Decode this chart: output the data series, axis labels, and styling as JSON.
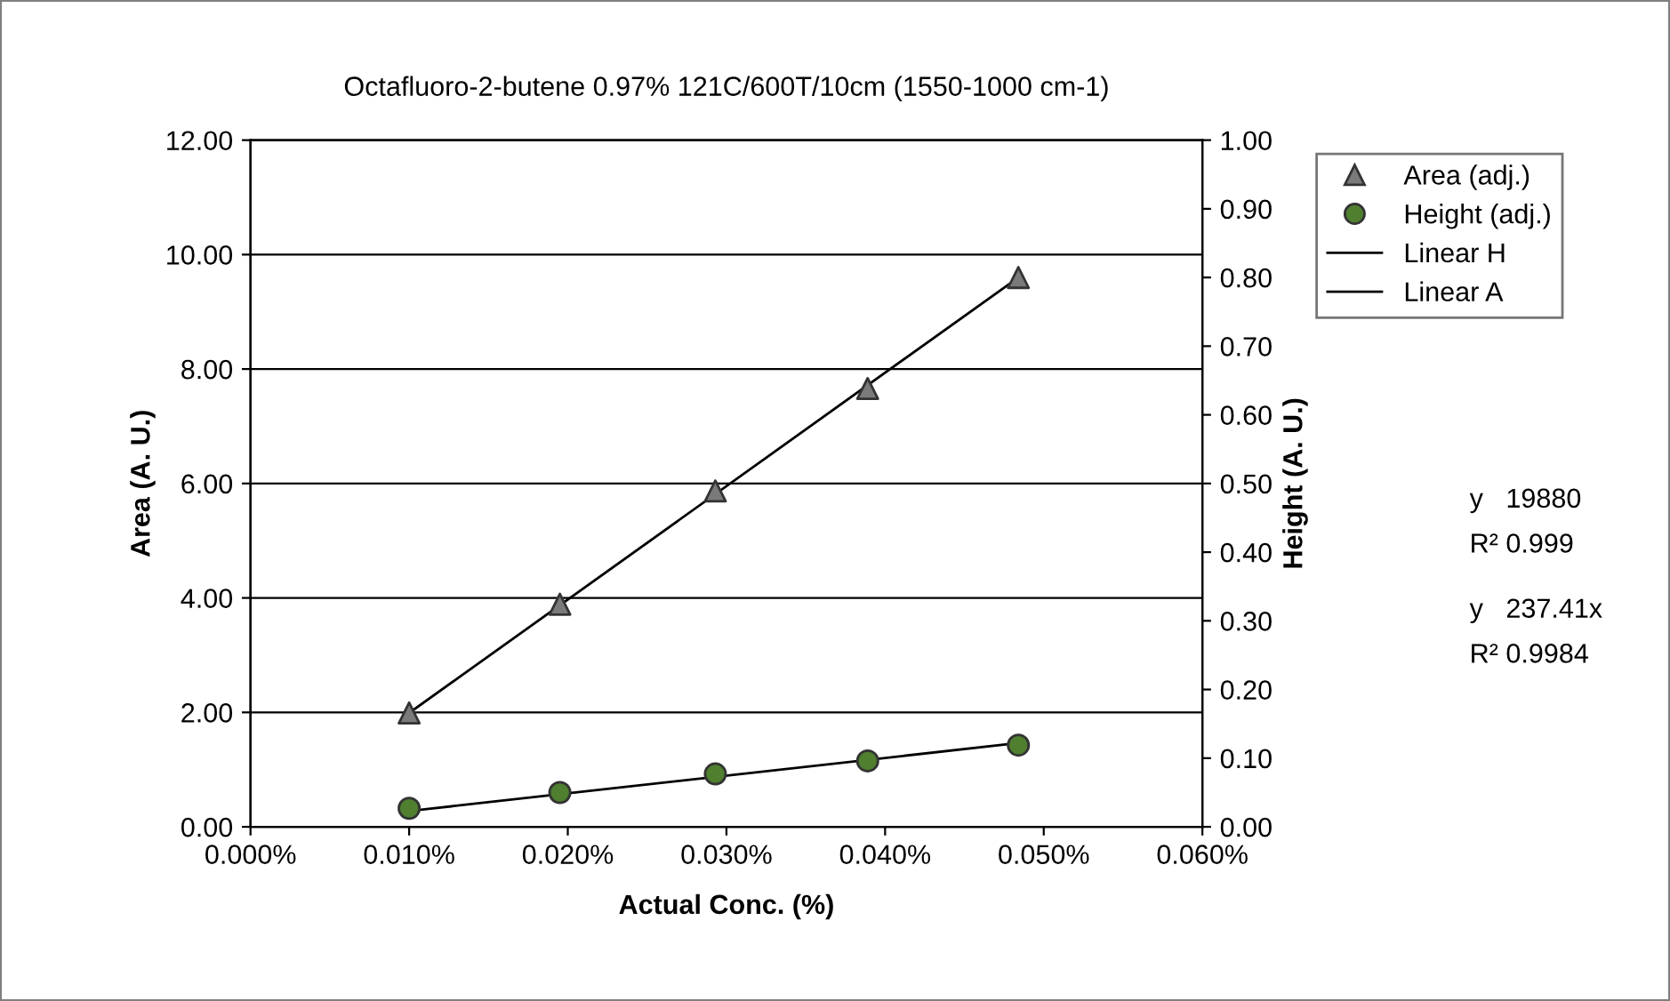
{
  "chart_data": {
    "type": "scatter",
    "title": "Octafluoro-2-butene 0.97% 121C/600T/10cm (1550-1000 cm-1)",
    "xlabel": "Actual Conc. (%)",
    "ylabel": "Area (A. U.)",
    "y2label": "Height (A. U.)",
    "series": [
      {
        "name": "Area (adj.)",
        "axis": "y",
        "marker": "triangle",
        "color": "#7a7a7a",
        "x": [
          0.01,
          0.0195,
          0.0293,
          0.0389,
          0.0484
        ],
        "values": [
          1.99,
          3.89,
          5.87,
          7.66,
          9.6
        ]
      },
      {
        "name": "Height (adj.)",
        "axis": "y2",
        "marker": "circle",
        "color": "#4f7f2f",
        "x": [
          0.01,
          0.0195,
          0.0293,
          0.0389,
          0.0484
        ],
        "values": [
          0.027,
          0.05,
          0.077,
          0.096,
          0.119
        ]
      },
      {
        "name": "Linear H",
        "type": "line",
        "axis": "y2",
        "marker": "none",
        "line_style": "solid",
        "color": "#000000",
        "x": [
          0.01,
          0.0484
        ],
        "values": [
          0.023,
          0.122
        ]
      },
      {
        "name": "Linear A",
        "type": "line",
        "axis": "y",
        "marker": "none",
        "line_style": "solid",
        "color": "#000000",
        "x": [
          0.01,
          0.0484
        ],
        "values": [
          1.99,
          9.6
        ]
      }
    ],
    "xlim": [
      0,
      0.06
    ],
    "xticks": [
      {
        "value": 0,
        "label": "0.000%"
      },
      {
        "value": 0.01,
        "label": "0.010%"
      },
      {
        "value": 0.02,
        "label": "0.020%"
      },
      {
        "value": 0.03,
        "label": "0.030%"
      },
      {
        "value": 0.04,
        "label": "0.040%"
      },
      {
        "value": 0.05,
        "label": "0.050%"
      },
      {
        "value": 0.06,
        "label": "0.060%"
      }
    ],
    "ylim": [
      0,
      12
    ],
    "yticks": [
      {
        "value": 0,
        "label": "0.00"
      },
      {
        "value": 2,
        "label": "2.00"
      },
      {
        "value": 4,
        "label": "4.00"
      },
      {
        "value": 6,
        "label": "6.00"
      },
      {
        "value": 8,
        "label": "8.00"
      },
      {
        "value": 10,
        "label": "10.00"
      },
      {
        "value": 12,
        "label": "12.00"
      }
    ],
    "y2lim": [
      0,
      1
    ],
    "y2ticks": [
      {
        "value": 0,
        "label": "0.00"
      },
      {
        "value": 0.1,
        "label": "0.10"
      },
      {
        "value": 0.2,
        "label": "0.20"
      },
      {
        "value": 0.3,
        "label": "0.30"
      },
      {
        "value": 0.4,
        "label": "0.40"
      },
      {
        "value": 0.5,
        "label": "0.50"
      },
      {
        "value": 0.6,
        "label": "0.60"
      },
      {
        "value": 0.7,
        "label": "0.70"
      },
      {
        "value": 0.8,
        "label": "0.80"
      },
      {
        "value": 0.9,
        "label": "0.90"
      },
      {
        "value": 1,
        "label": "1.00"
      }
    ],
    "grid": "y",
    "legend": "right",
    "annotations": [
      "y   19880",
      "R² 0.999",
      "y   237.41x",
      "R² 0.9984"
    ]
  }
}
